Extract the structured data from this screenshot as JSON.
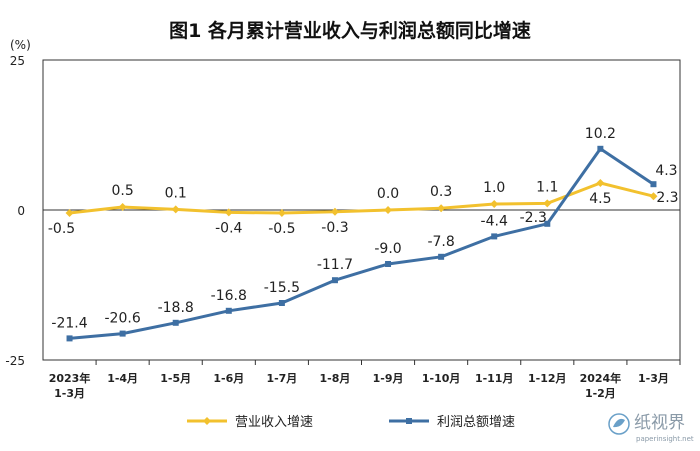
{
  "chart_data": {
    "type": "line",
    "title": "图1  各月累计营业收入与利润总额同比增速",
    "ylabel": "(%)",
    "ylim": [
      -25,
      25
    ],
    "yticks": [
      25,
      0,
      -25
    ],
    "grid": false,
    "legend_position": "bottom",
    "categories": [
      [
        "2023年",
        "1-3月"
      ],
      [
        "1-4月"
      ],
      [
        "1-5月"
      ],
      [
        "1-6月"
      ],
      [
        "1-7月"
      ],
      [
        "1-8月"
      ],
      [
        "1-9月"
      ],
      [
        "1-10月"
      ],
      [
        "1-11月"
      ],
      [
        "1-12月"
      ],
      [
        "2024年",
        "1-2月"
      ],
      [
        "1-3月"
      ]
    ],
    "series": [
      {
        "name": "营业收入增速",
        "color": "#F2C12E",
        "values": [
          -0.5,
          0.5,
          0.1,
          -0.4,
          -0.5,
          -0.3,
          0.0,
          0.3,
          1.0,
          1.1,
          4.5,
          2.3
        ],
        "labels": [
          "-0.5",
          "0.5",
          "0.1",
          "-0.4",
          "-0.5",
          "-0.3",
          "0.0",
          "0.3",
          "1.0",
          "1.1",
          "4.5",
          "2.3"
        ]
      },
      {
        "name": "利润总额增速",
        "color": "#3E6FA3",
        "values": [
          -21.4,
          -20.6,
          -18.8,
          -16.8,
          -15.5,
          -11.7,
          -9.0,
          -7.8,
          -4.4,
          -2.3,
          10.2,
          4.3
        ],
        "labels": [
          "-21.4",
          "-20.6",
          "-18.8",
          "-16.8",
          "-15.5",
          "-11.7",
          "-9.0",
          "-7.8",
          "-4.4",
          "-2.3",
          "10.2",
          "4.3"
        ]
      }
    ]
  },
  "watermark": {
    "logo_text": "纸视界",
    "url": "paperinsight.net"
  }
}
